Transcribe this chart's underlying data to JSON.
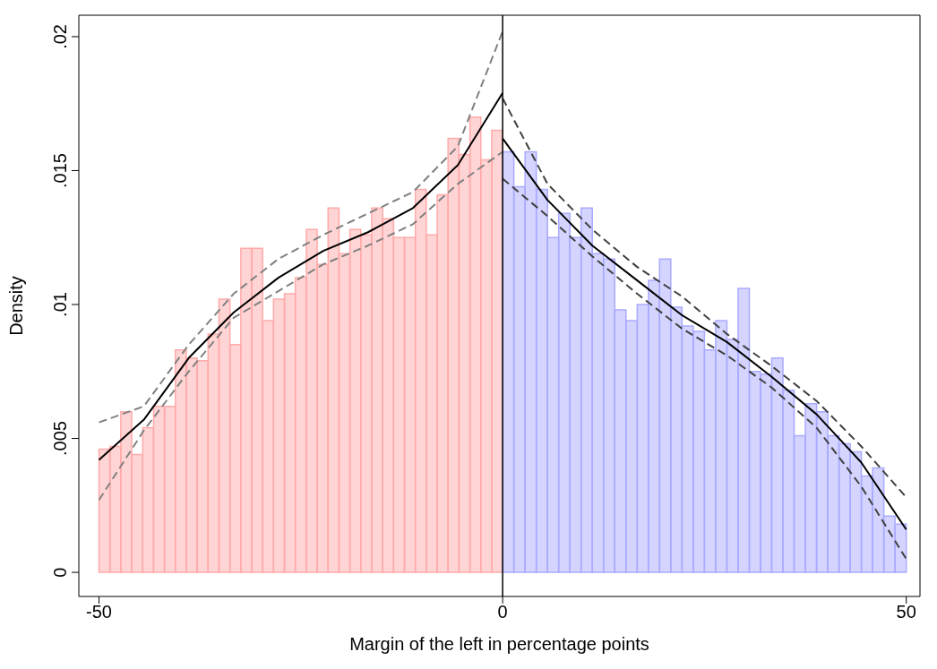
{
  "chart_data": {
    "type": "histogram",
    "xlabel": "Margin of the left in percentage points",
    "ylabel": "Density",
    "xlim": [
      -52.5,
      51.7
    ],
    "xticks": [
      -50,
      0,
      50
    ],
    "ylim": [
      -0.0009,
      0.0208
    ],
    "yticks": [
      0,
      {
        "value": 0.005,
        "label": ".005"
      },
      {
        "value": 0.01,
        "label": ".01"
      },
      {
        "value": 0.015,
        "label": ".015"
      },
      {
        "value": 0.02,
        "label": ".02"
      }
    ],
    "grid": false,
    "ref_lines": [
      {
        "axis": "x",
        "value": 0,
        "color": "#000000"
      }
    ],
    "series": [
      {
        "color": "#ffaaaa",
        "bins": [
          -50,
          -48.65,
          -47.3,
          -45.95,
          -44.59,
          -43.24,
          -41.89,
          -40.54,
          -39.19,
          -37.84,
          -36.49,
          -35.14,
          -33.78,
          -32.43,
          -31.08,
          -29.73,
          -28.38,
          -27.03,
          -25.68,
          -24.32,
          -22.97,
          -21.62,
          -20.27,
          -18.92,
          -17.57,
          -16.22,
          -14.86,
          -13.51,
          -12.16,
          -10.81,
          -9.46,
          -8.11,
          -6.76,
          -5.41,
          -4.05,
          -2.7,
          -1.35,
          0
        ],
        "values": [
          0.0046,
          0.0047,
          0.006,
          0.0044,
          0.0054,
          0.0062,
          0.0062,
          0.0083,
          0.008,
          0.0079,
          0.0089,
          0.0102,
          0.0085,
          0.0121,
          0.0121,
          0.0094,
          0.0102,
          0.0104,
          0.011,
          0.0128,
          0.0115,
          0.0136,
          0.0119,
          0.0128,
          0.0126,
          0.0136,
          0.0132,
          0.0125,
          0.0125,
          0.0143,
          0.0126,
          0.0141,
          0.0162,
          0.0156,
          0.017,
          0.0154,
          0.0165
        ]
      },
      {
        "color": "#aaaaff",
        "bins": [
          0,
          1.39,
          2.78,
          4.17,
          5.56,
          6.94,
          8.33,
          9.72,
          11.11,
          12.5,
          13.89,
          15.28,
          16.67,
          18.06,
          19.44,
          20.83,
          22.22,
          23.61,
          25,
          26.39,
          27.78,
          29.17,
          30.56,
          31.94,
          33.33,
          34.72,
          36.11,
          37.5,
          38.89,
          40.28,
          41.67,
          43.06,
          44.44,
          45.83,
          47.22,
          48.61,
          50
        ],
        "values": [
          0.0157,
          0.0144,
          0.0157,
          0.0143,
          0.0125,
          0.0134,
          0.0125,
          0.0136,
          0.0119,
          0.0117,
          0.0098,
          0.0094,
          0.01,
          0.0109,
          0.0117,
          0.0099,
          0.0092,
          0.009,
          0.0083,
          0.0094,
          0.0087,
          0.0106,
          0.0075,
          0.0074,
          0.008,
          0.0068,
          0.0051,
          0.0063,
          0.006,
          0.0051,
          0.0048,
          0.0045,
          0.0036,
          0.0039,
          0.0021,
          0.0018
        ]
      },
      {
        "type": "line",
        "color": "#000000",
        "line_style": "solid",
        "x": [
          -50,
          -44.44,
          -38.89,
          -33.33,
          -27.78,
          -22.22,
          -16.67,
          -11.11,
          -5.56,
          0
        ],
        "values": [
          0.0042,
          0.0057,
          0.008,
          0.0097,
          0.011,
          0.012,
          0.0127,
          0.0136,
          0.0152,
          0.0179
        ]
      },
      {
        "type": "line",
        "color": "#808080",
        "line_style": "dashed",
        "x": [
          -50,
          -44.44,
          -38.89,
          -33.33,
          -27.78,
          -22.22,
          -16.67,
          -11.11,
          -5.56,
          0
        ],
        "values": [
          0.0056,
          0.0062,
          0.0085,
          0.0104,
          0.0117,
          0.0126,
          0.0134,
          0.0142,
          0.0159,
          0.0202
        ]
      },
      {
        "type": "line",
        "color": "#808080",
        "line_style": "dashed",
        "x": [
          -50,
          -44.44,
          -38.89,
          -33.33,
          -27.78,
          -22.22,
          -16.67,
          -11.11,
          -5.56,
          0
        ],
        "values": [
          0.0027,
          0.0053,
          0.0075,
          0.0095,
          0.0105,
          0.0115,
          0.0122,
          0.013,
          0.0145,
          0.0157
        ]
      },
      {
        "type": "line",
        "color": "#000000",
        "line_style": "solid",
        "x": [
          0,
          5.56,
          11.11,
          16.67,
          22.22,
          27.78,
          33.33,
          38.89,
          44.44,
          50
        ],
        "values": [
          0.0162,
          0.0139,
          0.0122,
          0.0109,
          0.0096,
          0.0086,
          0.0073,
          0.0059,
          0.0041,
          0.0016
        ]
      },
      {
        "type": "line",
        "color": "#404040",
        "line_style": "dashed",
        "x": [
          0,
          5.56,
          11.11,
          16.67,
          22.22,
          27.78,
          33.33,
          38.89,
          44.44,
          50
        ],
        "values": [
          0.0177,
          0.0145,
          0.0128,
          0.0114,
          0.0103,
          0.0089,
          0.0077,
          0.0064,
          0.0047,
          0.0028
        ]
      },
      {
        "type": "line",
        "color": "#404040",
        "line_style": "dashed",
        "x": [
          0,
          5.56,
          11.11,
          16.67,
          22.22,
          27.78,
          33.33,
          38.89,
          44.44,
          50
        ],
        "values": [
          0.0147,
          0.0133,
          0.0118,
          0.0104,
          0.0091,
          0.0081,
          0.0069,
          0.0054,
          0.0032,
          0.0005
        ]
      }
    ]
  }
}
